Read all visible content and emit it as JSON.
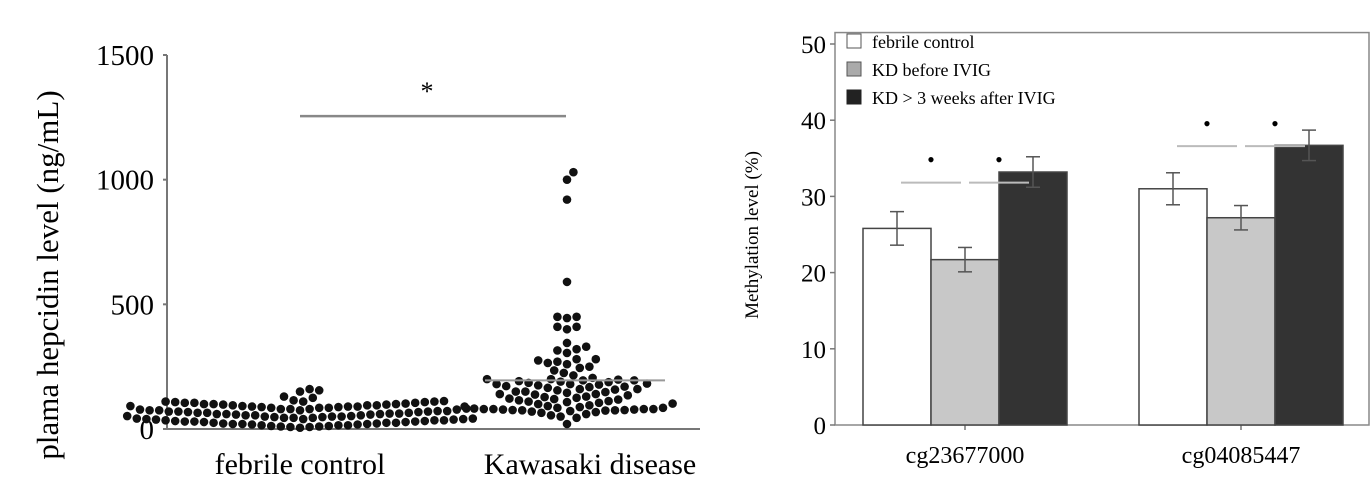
{
  "chart_data": [
    {
      "type": "scatter",
      "subtype": "beeswarm",
      "ylabel": "plama hepcidin level  (ng/mL)",
      "ylim": [
        0,
        1500
      ],
      "yticks": [
        "0",
        "500",
        "1000",
        "1500"
      ],
      "categories": [
        "febrile control",
        "Kawasaki disease"
      ],
      "groups": [
        {
          "category": "febrile control",
          "values": [
            160,
            155,
            150,
            130,
            125,
            115,
            112,
            110,
            110,
            110,
            108,
            108,
            105,
            105,
            105,
            102,
            100,
            100,
            100,
            98,
            98,
            95,
            95,
            95,
            92,
            92,
            90,
            90,
            90,
            88,
            88,
            85,
            85,
            85,
            82,
            80,
            80,
            80,
            78,
            78,
            75,
            75,
            75,
            72,
            72,
            70,
            70,
            70,
            68,
            68,
            65,
            65,
            65,
            62,
            62,
            60,
            60,
            60,
            58,
            58,
            55,
            55,
            55,
            52,
            52,
            50,
            50,
            50,
            48,
            48,
            45,
            45,
            45,
            42,
            42,
            40,
            40,
            40,
            38,
            38,
            35,
            35,
            35,
            32,
            32,
            30,
            30,
            30,
            28,
            28,
            25,
            25,
            25,
            22,
            22,
            20,
            20,
            20,
            18,
            18,
            15,
            15,
            15,
            12,
            12,
            10,
            10,
            8,
            8,
            5
          ]
        },
        {
          "category": "Kawasaki disease",
          "values": [
            1030,
            1000,
            920,
            590,
            450,
            450,
            445,
            410,
            410,
            400,
            345,
            330,
            320,
            315,
            305,
            280,
            280,
            275,
            270,
            265,
            260,
            250,
            245,
            235,
            225,
            215,
            205,
            200,
            200,
            198,
            195,
            195,
            192,
            190,
            188,
            185,
            182,
            180,
            180,
            178,
            175,
            172,
            170,
            168,
            165,
            160,
            160,
            158,
            155,
            150,
            150,
            148,
            145,
            140,
            140,
            138,
            135,
            130,
            128,
            125,
            122,
            120,
            118,
            115,
            112,
            110,
            108,
            105,
            102,
            100,
            95,
            92,
            90,
            88,
            85,
            85,
            82,
            80,
            80,
            80,
            80,
            78,
            78,
            76,
            76,
            75,
            75,
            74,
            72,
            70,
            68,
            65,
            60,
            55,
            50,
            45,
            20
          ]
        }
      ],
      "median_line": {
        "category": "Kawasaki disease",
        "value": 195
      },
      "significance": [
        {
          "between": [
            "febrile control",
            "Kawasaki disease"
          ],
          "value": 1255,
          "label": "*"
        }
      ]
    },
    {
      "type": "bar",
      "ylabel": "Methylation level (%)",
      "ylim": [
        0,
        51.5
      ],
      "yticks": [
        "0",
        "10",
        "20",
        "30",
        "40",
        "50"
      ],
      "categories": [
        "cg23677000",
        "cg04085447"
      ],
      "series": [
        {
          "name": "febrile control",
          "color": "#ffffff",
          "values": [
            25.8,
            31.0
          ],
          "errors": [
            2.2,
            2.1
          ]
        },
        {
          "name": "KD before IVIG",
          "color": "#c8c8c8",
          "values": [
            21.7,
            27.2
          ],
          "errors": [
            1.6,
            1.6
          ]
        },
        {
          "name": "KD > 3 weeks after IVIG",
          "color": "#333333",
          "values": [
            33.2,
            36.7
          ],
          "errors": [
            2.0,
            2.0
          ]
        }
      ],
      "legend": "top-left",
      "significance": [
        {
          "category": "cg23677000",
          "pairs": [
            [
              0,
              1
            ],
            [
              1,
              2
            ]
          ],
          "line_value": 31.8,
          "mark_value": 34.8,
          "label": "•"
        },
        {
          "category": "cg04085447",
          "pairs": [
            [
              0,
              1
            ],
            [
              1,
              2
            ]
          ],
          "line_value": 36.6,
          "mark_value": 39.5,
          "label": "•"
        }
      ]
    }
  ]
}
